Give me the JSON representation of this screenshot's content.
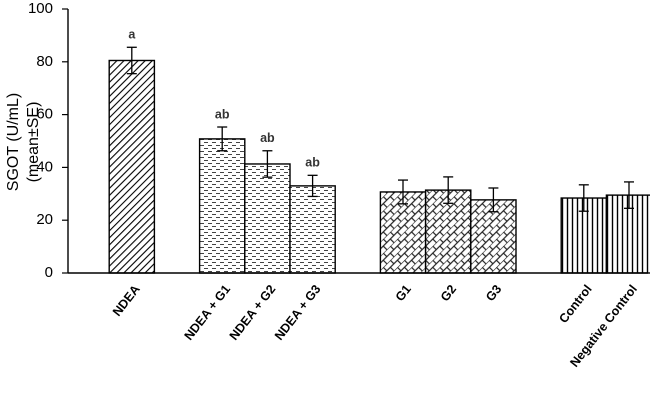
{
  "chart_data": {
    "type": "bar",
    "ylabel": [
      "SGOT (U/mL)",
      "(mean±SE)"
    ],
    "categories": [
      null,
      "NDEA",
      null,
      "NDEA + G1",
      "NDEA + G2",
      "NDEA + G3",
      null,
      "G1",
      "G2",
      "G3",
      null,
      "Control",
      "Negative Control"
    ],
    "values": [
      null,
      80.5,
      null,
      50.8,
      41.3,
      33,
      null,
      30.7,
      31.4,
      27.7,
      null,
      28.4,
      29.5
    ],
    "errors": [
      null,
      5,
      null,
      4.5,
      5,
      4,
      null,
      4.5,
      5,
      4.5,
      null,
      5,
      5
    ],
    "annotations": [
      null,
      "a",
      null,
      "ab",
      "ab",
      "ab",
      null,
      null,
      null,
      null,
      null,
      null,
      null
    ],
    "patterns": [
      null,
      "diagonal-dense",
      null,
      "dashes",
      "dashes",
      "dashes",
      null,
      "brick",
      "brick",
      "brick",
      null,
      "vertical",
      "vertical"
    ],
    "color": "#000000",
    "ylim": [
      0,
      100
    ],
    "yticks": [
      0,
      20,
      40,
      60,
      80,
      100
    ]
  }
}
